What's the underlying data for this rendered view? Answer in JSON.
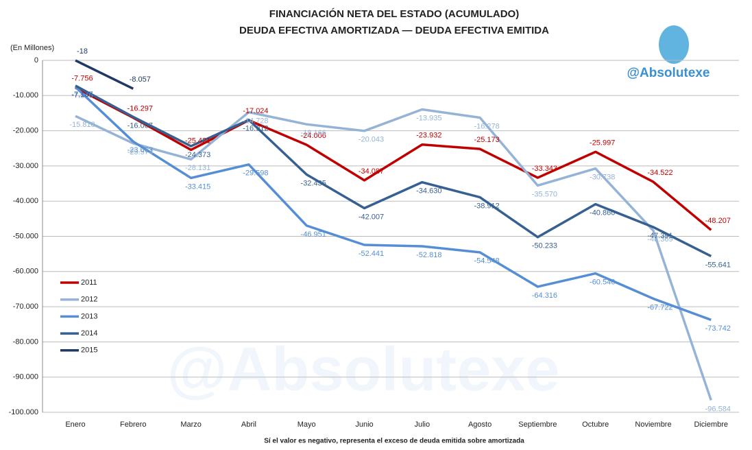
{
  "chart_data": {
    "type": "line",
    "title": "FINANCIACIÓN NETA DEL ESTADO (ACUMULADO)",
    "subtitle": "DEUDA EFECTIVA AMORTIZADA — DEUDA EFECTIVA EMITIDA",
    "y_axis_label": "(En Millones)",
    "note": "Sí el valor es negativo, representa el exceso de deuda emitida sobre amortizada",
    "brand": "@Absolutexe",
    "categories": [
      "Enero",
      "Febrero",
      "Marzo",
      "Abril",
      "Mayo",
      "Junio",
      "Julio",
      "Agosto",
      "Septiembre",
      "Octubre",
      "Noviembre",
      "Diciembre"
    ],
    "series": [
      {
        "name": "2011",
        "color": "#c00000",
        "values": [
          -7756,
          -16297,
          -25421,
          -17024,
          -24006,
          -34087,
          -23932,
          -25173,
          -33343,
          -25997,
          -34522,
          -48207
        ],
        "value_labels": [
          "-7.756",
          "-16.297",
          "-25.421",
          "-17.024",
          "-24.006",
          "-34.087",
          "-23.932",
          "-25.173",
          "-33.343",
          "-25.997",
          "-34.522",
          "-48.207"
        ]
      },
      {
        "name": "2012",
        "color": "#95b3d7",
        "values": [
          -15818,
          -23574,
          -28131,
          -14728,
          -18166,
          -20043,
          -13935,
          -16278,
          -35570,
          -30738,
          -48369,
          -96584
        ],
        "value_labels": [
          "-15.818",
          "-23.574",
          "-28.131",
          "-14.728",
          "-18.166",
          "-20.043",
          "-13.935",
          "-16.278",
          "-35.570",
          "-30.738",
          "-48.369",
          "-96.584"
        ]
      },
      {
        "name": "2013",
        "color": "#558ed5",
        "values": [
          -7546,
          -23063,
          -33415,
          -29598,
          -46951,
          -52441,
          -52818,
          -54548,
          -64316,
          -60546,
          -67722,
          -73742
        ],
        "value_labels": [
          "-7.546",
          "-23.063",
          "-33.415",
          "-29.598",
          "-46.951",
          "-52.441",
          "-52.818",
          "-54.548",
          "-64.316",
          "-60.546",
          "-67.722",
          "-73.742"
        ]
      },
      {
        "name": "2014",
        "color": "#376092",
        "values": [
          -7187,
          -16067,
          -24373,
          -16912,
          -32435,
          -42007,
          -34630,
          -38912,
          -50233,
          -40860,
          -47391,
          -55641
        ],
        "value_labels": [
          "-7.187",
          "-16.067",
          "-24.373",
          "-16.912",
          "-32.435",
          "-42.007",
          "-34.630",
          "-38.912",
          "-50.233",
          "-40.860",
          "-47.391",
          "-55.641"
        ]
      },
      {
        "name": "2015",
        "color": "#1f3864",
        "values": [
          -18,
          -8057,
          null,
          null,
          null,
          null,
          null,
          null,
          null,
          null,
          null,
          null
        ],
        "value_labels": [
          "-18",
          "-8.057",
          null,
          null,
          null,
          null,
          null,
          null,
          null,
          null,
          null,
          null
        ]
      }
    ],
    "ylim": [
      -100000,
      0
    ],
    "yticks": [
      0,
      {
        "value": -10000,
        "label": "-10.000"
      },
      {
        "value": -20000,
        "label": "-20.000"
      },
      {
        "value": -30000,
        "label": "-30.000"
      },
      {
        "value": -40000,
        "label": "-40.000"
      },
      {
        "value": -50000,
        "label": "-50.000"
      },
      {
        "value": -60000,
        "label": "-60.000"
      },
      {
        "value": -70000,
        "label": "-70.000"
      },
      {
        "value": -80000,
        "label": "-80.000"
      },
      {
        "value": -90000,
        "label": "-90.000"
      },
      {
        "value": -100000,
        "label": "-100.000"
      }
    ],
    "grid": true,
    "legend": "left"
  }
}
